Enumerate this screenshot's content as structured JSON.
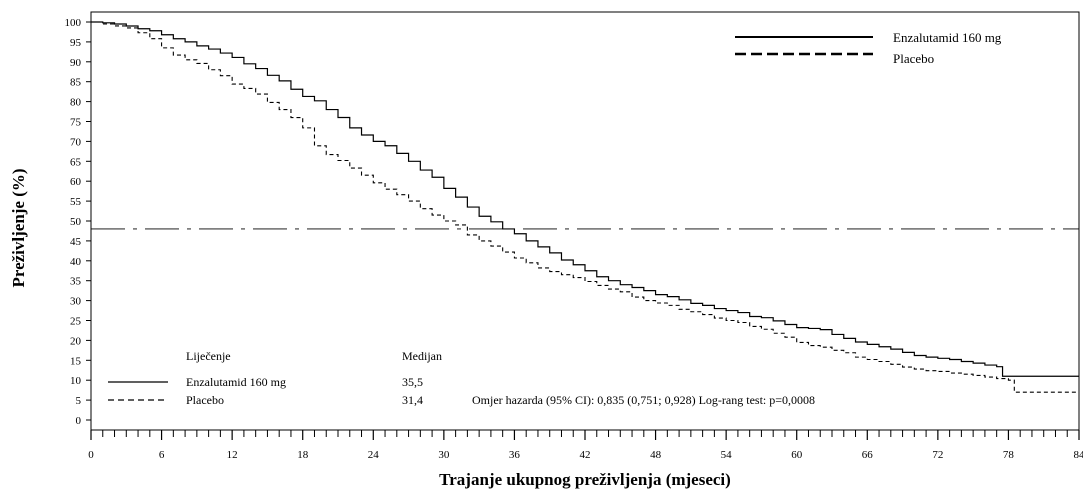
{
  "chart_data": {
    "type": "line",
    "xlabel": "Trajanje ukupnog preživljenja (mjeseci)",
    "ylabel": "Preživljenje (%)",
    "xlim": [
      0,
      84
    ],
    "ylim": [
      -5,
      100
    ],
    "x_ticks": [
      0,
      6,
      12,
      18,
      24,
      30,
      36,
      42,
      48,
      54,
      60,
      66,
      72,
      78,
      84
    ],
    "y_ticks": [
      0,
      5,
      10,
      15,
      20,
      25,
      30,
      35,
      40,
      45,
      50,
      55,
      60,
      65,
      70,
      75,
      80,
      85,
      90,
      95,
      100
    ],
    "grid": false,
    "reference_line": {
      "y": 48,
      "style": "dash-dot"
    },
    "series": [
      {
        "name": "Enzalutamid 160 mg",
        "line_style": "solid",
        "x": [
          0,
          1,
          2,
          3,
          4,
          5,
          6,
          7,
          8,
          9,
          10,
          11,
          12,
          13,
          14,
          15,
          16,
          17,
          18,
          19,
          20,
          21,
          22,
          23,
          24,
          25,
          26,
          27,
          28,
          29,
          30,
          31,
          32,
          33,
          34,
          35,
          36,
          37,
          38,
          39,
          40,
          41,
          42,
          43,
          44,
          45,
          46,
          47,
          48,
          49,
          50,
          51,
          52,
          53,
          54,
          55,
          56,
          57,
          58,
          59,
          60,
          61,
          62,
          63,
          64,
          65,
          66,
          67,
          68,
          69,
          70,
          71,
          72,
          73,
          74,
          75,
          76,
          77,
          77.5,
          78,
          79,
          80,
          81,
          82,
          83,
          84
        ],
        "values": [
          100,
          99.8,
          99.5,
          99,
          98.3,
          97.8,
          96.8,
          95.8,
          95,
          94,
          93.2,
          92.2,
          91.1,
          89.5,
          88.3,
          86.6,
          85.2,
          83.1,
          81.3,
          80.2,
          78,
          76,
          73.4,
          71.6,
          70,
          68.9,
          67,
          65,
          62.8,
          61,
          58.2,
          56,
          53.5,
          51.2,
          49.8,
          48,
          46.8,
          45,
          43.5,
          42,
          40.2,
          39,
          37.5,
          36,
          35,
          34,
          33.3,
          32.5,
          31.5,
          31,
          30.2,
          29.3,
          28.8,
          28,
          27.5,
          27,
          26,
          25.7,
          24.9,
          24,
          23.2,
          23,
          22.7,
          21.5,
          20.5,
          19.6,
          19,
          18.4,
          17.8,
          17,
          16.2,
          15.8,
          15.5,
          15.2,
          14.7,
          14.3,
          13.8,
          13.4,
          11,
          11,
          11,
          11,
          11,
          11,
          11,
          11
        ]
      },
      {
        "name": "Placebo",
        "line_style": "dashed",
        "x": [
          0,
          1,
          2,
          3,
          4,
          5,
          6,
          7,
          8,
          9,
          10,
          11,
          12,
          13,
          14,
          15,
          16,
          17,
          18,
          19,
          20,
          21,
          22,
          23,
          24,
          25,
          26,
          27,
          28,
          29,
          30,
          31,
          32,
          33,
          34,
          35,
          36,
          37,
          38,
          39,
          40,
          41,
          42,
          43,
          44,
          45,
          46,
          47,
          48,
          49,
          50,
          51,
          52,
          53,
          54,
          55,
          56,
          57,
          58,
          59,
          60,
          61,
          62,
          63,
          64,
          65,
          66,
          67,
          68,
          69,
          70,
          71,
          72,
          73,
          74,
          75,
          76,
          77,
          78,
          78.5,
          79,
          80,
          81,
          82,
          83,
          84
        ],
        "values": [
          100,
          99.5,
          99,
          98.5,
          97.3,
          95.8,
          93.5,
          91.7,
          90.5,
          89.6,
          88,
          86.5,
          84.4,
          83.3,
          81.9,
          79.8,
          78,
          76,
          73.4,
          68.9,
          66.7,
          65.2,
          63.3,
          61.5,
          59.6,
          58,
          56.6,
          55,
          53.1,
          51.5,
          50,
          49,
          46.5,
          45,
          43.7,
          42.2,
          40.7,
          39.5,
          38.2,
          37.3,
          36.5,
          35.8,
          34.8,
          33.8,
          32.9,
          32.2,
          30.9,
          30,
          29.4,
          28.8,
          27.8,
          27.2,
          26.5,
          25.6,
          25,
          24.5,
          23.5,
          22.8,
          21.8,
          20.8,
          19.5,
          18.7,
          18.3,
          17.5,
          16.9,
          15.8,
          15.2,
          14.7,
          14,
          13.3,
          12.8,
          12.4,
          12.2,
          11.8,
          11.5,
          11.2,
          10.8,
          10.4,
          10,
          7,
          7,
          7,
          7,
          7,
          7,
          7
        ]
      }
    ],
    "table": {
      "header_treatment": "Liječenje",
      "header_median": "Medijan",
      "rows": [
        {
          "treatment": "Enzalutamid 160 mg",
          "median": "35,5"
        },
        {
          "treatment": "Placebo",
          "median": "31,4"
        }
      ],
      "hazard_text": "Omjer hazarda (95% CI): 0,835 (0,751; 0,928) Log-rang test: p=0,0008"
    }
  }
}
